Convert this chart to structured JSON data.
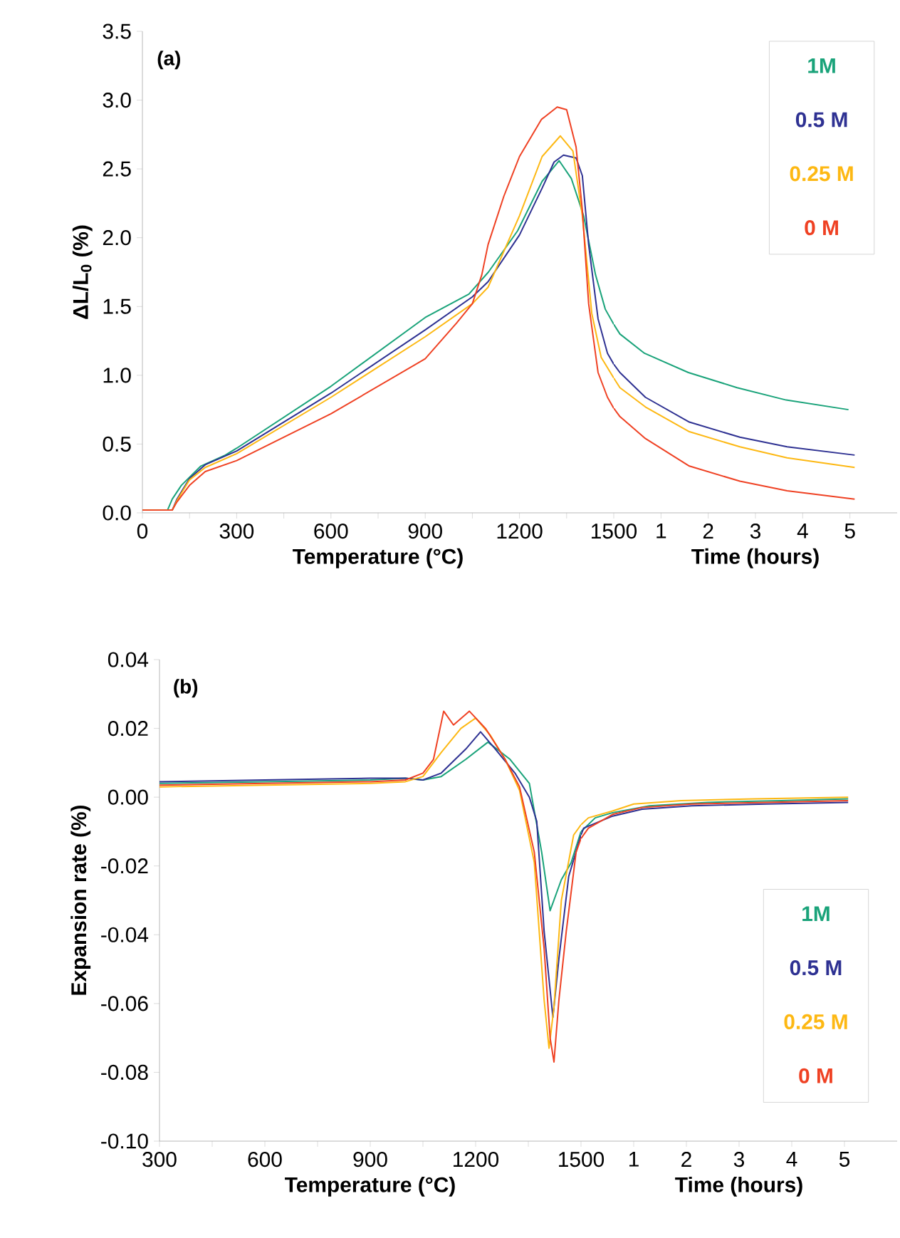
{
  "chart_data": [
    {
      "type": "line",
      "title": "(a)",
      "xlabel": "Temperature (°C)",
      "ylabel": "ΔL/L$_{0}$ (%)",
      "xlim": [
        0,
        1500
      ],
      "ylim": [
        0,
        3.5
      ],
      "xticks": [
        0,
        {
          "value": 150,
          "label": null
        },
        300,
        {
          "value": 450,
          "label": null
        },
        600,
        {
          "value": 750,
          "label": null
        },
        900,
        {
          "value": 1050,
          "label": null
        },
        1200,
        {
          "value": 1350,
          "label": null
        },
        1500
      ],
      "yticks": [
        {
          "value": 0,
          "label": "0.0"
        },
        {
          "value": 0.5,
          "label": "0.5"
        },
        {
          "value": 1,
          "label": "1.0"
        },
        {
          "value": 1.5,
          "label": "1.5"
        },
        {
          "value": 2,
          "label": "2.0"
        },
        {
          "value": 2.5,
          "label": "2.5"
        },
        {
          "value": 3,
          "label": "3.0"
        },
        {
          "value": 3.5,
          "label": "3.5"
        }
      ],
      "marker": "none",
      "line_style": "solid",
      "series": [
        {
          "color": "#1aa37a",
          "x": [
            0,
            80,
            95,
            124,
            186,
            264,
            300,
            600,
            900,
            1039,
            1101,
            1194,
            1272,
            1326,
            1365,
            1404,
            1442,
            1473,
            1500
          ],
          "values": [
            0.02,
            0.02,
            0.1,
            0.2,
            0.34,
            0.42,
            0.47,
            0.92,
            1.42,
            1.59,
            1.75,
            2.05,
            2.41,
            2.56,
            2.43,
            2.16,
            1.73,
            1.48,
            1.37
          ]
        },
        {
          "color": "#2e3192",
          "x": [
            0,
            95,
            110,
            150,
            200,
            300,
            600,
            900,
            1050,
            1100,
            1200,
            1272,
            1310,
            1340,
            1380,
            1400,
            1420,
            1450,
            1480,
            1500
          ],
          "values": [
            0.02,
            0.02,
            0.1,
            0.25,
            0.35,
            0.45,
            0.87,
            1.33,
            1.57,
            1.68,
            2.02,
            2.36,
            2.55,
            2.6,
            2.58,
            2.45,
            1.95,
            1.41,
            1.16,
            1.08
          ]
        },
        {
          "color": "#fdb813",
          "x": [
            0,
            95,
            110,
            150,
            200,
            300,
            600,
            900,
            1050,
            1100,
            1200,
            1272,
            1330,
            1370,
            1400,
            1430,
            1460,
            1500
          ],
          "values": [
            0.02,
            0.02,
            0.09,
            0.24,
            0.33,
            0.43,
            0.84,
            1.28,
            1.52,
            1.64,
            2.16,
            2.59,
            2.74,
            2.63,
            2.16,
            1.45,
            1.13,
            0.98
          ]
        },
        {
          "color": "#ef4123",
          "x": [
            0,
            95,
            110,
            150,
            200,
            300,
            600,
            900,
            1000,
            1050,
            1080,
            1100,
            1150,
            1200,
            1270,
            1320,
            1350,
            1380,
            1400,
            1420,
            1450,
            1480,
            1500
          ],
          "values": [
            0.02,
            0.02,
            0.08,
            0.2,
            0.3,
            0.38,
            0.72,
            1.12,
            1.38,
            1.52,
            1.73,
            1.95,
            2.3,
            2.59,
            2.86,
            2.95,
            2.93,
            2.66,
            2.2,
            1.52,
            1.02,
            0.84,
            0.76
          ]
        }
      ]
    },
    {
      "type": "line",
      "xlabel": "Time (hours)",
      "xlim": [
        0,
        6
      ],
      "ylim": [
        0,
        3.5
      ],
      "xticks": [
        1,
        2,
        3,
        4,
        5
      ],
      "tick_labels": "x",
      "legend": "top right",
      "marker": "none",
      "line_style": "solid",
      "series": [
        {
          "name": "1M",
          "color": "#1aa37a",
          "x": [
            0,
            0.13,
            0.65,
            1.58,
            2.61,
            3.65,
            4.97
          ],
          "values": [
            1.37,
            1.3,
            1.16,
            1.02,
            0.91,
            0.82,
            0.75
          ]
        },
        {
          "name": "0.5 M",
          "color": "#2e3192",
          "x": [
            0,
            0.13,
            0.67,
            1.6,
            2.67,
            3.67,
            5.1
          ],
          "values": [
            1.08,
            1.02,
            0.84,
            0.66,
            0.55,
            0.48,
            0.42
          ]
        },
        {
          "name": "0.25 M",
          "color": "#fdb813",
          "x": [
            0,
            0.13,
            0.67,
            1.6,
            2.67,
            3.67,
            5.1
          ],
          "values": [
            0.98,
            0.91,
            0.77,
            0.59,
            0.48,
            0.4,
            0.33
          ]
        },
        {
          "name": "0 M",
          "color": "#ef4123",
          "x": [
            0,
            0.13,
            0.67,
            1.6,
            2.67,
            3.67,
            5.1
          ],
          "values": [
            0.76,
            0.7,
            0.54,
            0.34,
            0.23,
            0.16,
            0.1
          ]
        }
      ]
    },
    {
      "type": "line",
      "title": "(b)",
      "xlabel": "Temperature (°C)",
      "ylabel": "Expansion rate (%)",
      "xlim": [
        300,
        1500
      ],
      "ylim": [
        -0.1,
        0.04
      ],
      "xticks": [
        300,
        {
          "value": 450,
          "label": null
        },
        600,
        {
          "value": 750,
          "label": null
        },
        900,
        {
          "value": 1050,
          "label": null
        },
        1200,
        {
          "value": 1350,
          "label": null
        },
        1500
      ],
      "yticks": [
        {
          "value": -0.1,
          "label": "-0.10"
        },
        {
          "value": -0.08,
          "label": "-0.08"
        },
        {
          "value": -0.06,
          "label": "-0.06"
        },
        {
          "value": -0.04,
          "label": "-0.04"
        },
        {
          "value": -0.02,
          "label": "-0.02"
        },
        {
          "value": 0,
          "label": "0.00"
        },
        {
          "value": 0.02,
          "label": "0.02"
        },
        {
          "value": 0.04,
          "label": "0.04"
        }
      ],
      "marker": "none",
      "line_style": "solid",
      "series": [
        {
          "color": "#1aa37a",
          "x": [
            300,
            600,
            900,
            1000,
            1050,
            1102,
            1172,
            1235,
            1298,
            1353,
            1388,
            1412,
            1444,
            1472,
            1500
          ],
          "values": [
            0.004,
            0.0045,
            0.005,
            0.0055,
            0.005,
            0.006,
            0.011,
            0.016,
            0.011,
            0.004,
            -0.016,
            -0.033,
            -0.024,
            -0.019,
            -0.01
          ]
        },
        {
          "color": "#2e3192",
          "x": [
            300,
            600,
            900,
            1000,
            1050,
            1102,
            1172,
            1214,
            1256,
            1312,
            1353,
            1374,
            1395,
            1420,
            1437,
            1465,
            1500
          ],
          "values": [
            0.0045,
            0.005,
            0.0055,
            0.0055,
            0.005,
            0.007,
            0.014,
            0.019,
            0.014,
            0.007,
            0.0,
            -0.007,
            -0.039,
            -0.064,
            -0.047,
            -0.023,
            -0.011
          ]
        },
        {
          "color": "#fdb813",
          "x": [
            300,
            600,
            900,
            1000,
            1050,
            1102,
            1158,
            1200,
            1242,
            1284,
            1325,
            1367,
            1395,
            1409,
            1423,
            1444,
            1479,
            1500
          ],
          "values": [
            0.003,
            0.0035,
            0.004,
            0.0045,
            0.006,
            0.013,
            0.02,
            0.023,
            0.018,
            0.011,
            0.002,
            -0.019,
            -0.059,
            -0.073,
            -0.061,
            -0.03,
            -0.011,
            -0.008
          ]
        },
        {
          "color": "#ef4123",
          "x": [
            300,
            600,
            900,
            1000,
            1050,
            1080,
            1109,
            1137,
            1182,
            1228,
            1284,
            1325,
            1367,
            1395,
            1412,
            1423,
            1437,
            1458,
            1486,
            1500
          ],
          "values": [
            0.0035,
            0.004,
            0.0045,
            0.005,
            0.007,
            0.011,
            0.025,
            0.021,
            0.025,
            0.02,
            0.011,
            0.003,
            -0.016,
            -0.044,
            -0.07,
            -0.077,
            -0.059,
            -0.039,
            -0.016,
            -0.012
          ]
        }
      ]
    },
    {
      "type": "line",
      "xlabel": "Time (hours)",
      "xlim": [
        0,
        6
      ],
      "ylim": [
        -0.1,
        0.04
      ],
      "xticks": [
        1,
        2,
        3,
        4,
        5
      ],
      "tick_labels": "x",
      "legend": "bottom right",
      "marker": "none",
      "line_style": "solid",
      "series": [
        {
          "name": "1M",
          "color": "#1aa37a",
          "x": [
            0,
            0.27,
            0.6,
            1.3,
            2.4,
            3.8,
            5.07
          ],
          "values": [
            -0.01,
            -0.006,
            -0.0045,
            -0.0025,
            -0.0015,
            -0.001,
            -0.0005
          ]
        },
        {
          "name": "0.5 M",
          "color": "#2e3192",
          "x": [
            0,
            0.05,
            0.6,
            1.16,
            2.1,
            3.5,
            5.07
          ],
          "values": [
            -0.011,
            -0.009,
            -0.0055,
            -0.0035,
            -0.0025,
            -0.002,
            -0.0015
          ]
        },
        {
          "name": "0.25 M",
          "color": "#fdb813",
          "x": [
            0,
            0.14,
            0.6,
            1.0,
            1.9,
            3.3,
            5.07
          ],
          "values": [
            -0.008,
            -0.006,
            -0.004,
            -0.002,
            -0.001,
            -0.0005,
            0.0
          ]
        },
        {
          "name": "0 M",
          "color": "#ef4123",
          "x": [
            0,
            0.14,
            0.6,
            1.16,
            2.1,
            3.5,
            5.07
          ],
          "values": [
            -0.012,
            -0.009,
            -0.005,
            -0.003,
            -0.002,
            -0.0015,
            -0.001
          ]
        }
      ]
    }
  ]
}
